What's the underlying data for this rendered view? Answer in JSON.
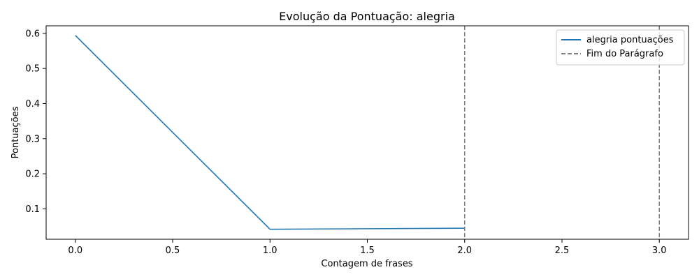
{
  "chart_data": {
    "type": "line",
    "title": "Evolução da Pontuação: alegria",
    "xlabel": "Contagem de frases",
    "ylabel": "Pontuações",
    "xlim": [
      -0.15,
      3.15
    ],
    "ylim": [
      0.0135,
      0.6215
    ],
    "xticks": [
      0.0,
      0.5,
      1.0,
      1.5,
      2.0,
      2.5,
      3.0
    ],
    "xtick_labels": [
      "0.0",
      "0.5",
      "1.0",
      "1.5",
      "2.0",
      "2.5",
      "3.0"
    ],
    "yticks": [
      0.1,
      0.2,
      0.3,
      0.4,
      0.5,
      0.6
    ],
    "ytick_labels": [
      "0.1",
      "0.2",
      "0.3",
      "0.4",
      "0.5",
      "0.6"
    ],
    "grid": false,
    "legend_position": "top-right",
    "series": [
      {
        "name": "alegria pontuações",
        "color": "#1f77b4",
        "x": [
          0,
          1,
          2
        ],
        "y": [
          0.594,
          0.042,
          0.045
        ]
      }
    ],
    "vlines": {
      "name": "Fim do Parágrafo",
      "color": "#808080",
      "x": [
        2,
        3
      ]
    }
  }
}
